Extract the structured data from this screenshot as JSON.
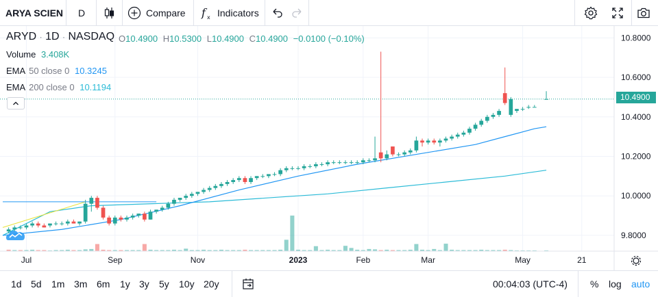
{
  "toolbar": {
    "symbol": "ARYA SCIEN",
    "interval": "D",
    "compare_label": "Compare",
    "indicators_label": "Indicators"
  },
  "legend": {
    "ticker": "ARYD",
    "interval": "1D",
    "exchange": "NASDAQ",
    "o_label": "O",
    "o": "10.4900",
    "h_label": "H",
    "h": "10.5300",
    "l_label": "L",
    "l": "10.4900",
    "c_label": "C",
    "c": "10.4900",
    "change": "−0.0100 (−0.10%)",
    "volume_label": "Volume",
    "volume": "3.408K",
    "ema50_label": "EMA",
    "ema50_params": "50 close 0",
    "ema50_value": "10.3245",
    "ema200_label": "EMA",
    "ema200_params": "200 close 0",
    "ema200_value": "10.1194"
  },
  "price_label": "10.4900",
  "time_ranges": [
    "1d",
    "5d",
    "1m",
    "3m",
    "6m",
    "1y",
    "3y",
    "5y",
    "10y",
    "20y"
  ],
  "bottom": {
    "clock": "00:04:03 (UTC-4)",
    "percent": "%",
    "log": "log",
    "auto": "auto"
  },
  "colors": {
    "up": "#26a69a",
    "down": "#ef5350",
    "ema50": "#2196f3",
    "ema200": "#2bbbd7",
    "trendline": "#e8e33a",
    "auto": "#2196f3"
  },
  "chart_data": {
    "type": "candlestick",
    "y_ticks": [
      "10.8000",
      "10.6000",
      "10.4000",
      "10.2000",
      "10.0000",
      "9.8000"
    ],
    "ylim": [
      9.72,
      10.86
    ],
    "x_ticks": [
      "Jul",
      "Sep",
      "Nov",
      "2023",
      "Feb",
      "Mar",
      "May",
      "21"
    ],
    "xlim": [
      0,
      100
    ],
    "x_tick_positions": [
      4,
      19,
      33,
      50,
      61,
      72,
      88,
      98
    ],
    "candles": [
      {
        "x": 1,
        "o": 9.82,
        "h": 9.84,
        "l": 9.81,
        "c": 9.83
      },
      {
        "x": 2,
        "o": 9.83,
        "h": 9.85,
        "l": 9.82,
        "c": 9.84
      },
      {
        "x": 3,
        "o": 9.84,
        "h": 9.85,
        "l": 9.83,
        "c": 9.84
      },
      {
        "x": 4,
        "o": 9.84,
        "h": 9.86,
        "l": 9.83,
        "c": 9.85
      },
      {
        "x": 5,
        "o": 9.85,
        "h": 9.87,
        "l": 9.84,
        "c": 9.86
      },
      {
        "x": 6,
        "o": 9.86,
        "h": 9.87,
        "l": 9.84,
        "c": 9.85
      },
      {
        "x": 7,
        "o": 9.85,
        "h": 9.86,
        "l": 9.84,
        "c": 9.84
      },
      {
        "x": 8,
        "o": 9.85,
        "h": 9.86,
        "l": 9.84,
        "c": 9.86
      },
      {
        "x": 9,
        "o": 9.86,
        "h": 9.87,
        "l": 9.85,
        "c": 9.86
      },
      {
        "x": 10,
        "o": 9.86,
        "h": 9.87,
        "l": 9.85,
        "c": 9.86
      },
      {
        "x": 11,
        "o": 9.86,
        "h": 9.88,
        "l": 9.85,
        "c": 9.87
      },
      {
        "x": 12,
        "o": 9.87,
        "h": 9.88,
        "l": 9.86,
        "c": 9.86
      },
      {
        "x": 13,
        "o": 9.86,
        "h": 9.87,
        "l": 9.85,
        "c": 9.87
      },
      {
        "x": 14,
        "o": 9.87,
        "h": 9.98,
        "l": 9.86,
        "c": 9.96
      },
      {
        "x": 15,
        "o": 9.96,
        "h": 10.0,
        "l": 9.92,
        "c": 9.99
      },
      {
        "x": 16,
        "o": 9.99,
        "h": 10.0,
        "l": 9.93,
        "c": 9.94
      },
      {
        "x": 17,
        "o": 9.94,
        "h": 9.95,
        "l": 9.88,
        "c": 9.89
      },
      {
        "x": 18,
        "o": 9.89,
        "h": 9.9,
        "l": 9.85,
        "c": 9.86
      },
      {
        "x": 19,
        "o": 9.86,
        "h": 9.9,
        "l": 9.85,
        "c": 9.89
      },
      {
        "x": 20,
        "o": 9.89,
        "h": 9.9,
        "l": 9.87,
        "c": 9.88
      },
      {
        "x": 21,
        "o": 9.88,
        "h": 9.9,
        "l": 9.87,
        "c": 9.89
      },
      {
        "x": 22,
        "o": 9.89,
        "h": 9.91,
        "l": 9.88,
        "c": 9.9
      },
      {
        "x": 23,
        "o": 9.9,
        "h": 9.91,
        "l": 9.89,
        "c": 9.91
      },
      {
        "x": 24,
        "o": 9.91,
        "h": 9.92,
        "l": 9.87,
        "c": 9.88
      },
      {
        "x": 25,
        "o": 9.88,
        "h": 9.93,
        "l": 9.88,
        "c": 9.92
      },
      {
        "x": 26,
        "o": 9.92,
        "h": 9.93,
        "l": 9.91,
        "c": 9.93
      },
      {
        "x": 27,
        "o": 9.93,
        "h": 9.95,
        "l": 9.92,
        "c": 9.94
      },
      {
        "x": 28,
        "o": 9.94,
        "h": 9.97,
        "l": 9.93,
        "c": 9.96
      },
      {
        "x": 29,
        "o": 9.96,
        "h": 9.99,
        "l": 9.95,
        "c": 9.98
      },
      {
        "x": 30,
        "o": 9.98,
        "h": 9.99,
        "l": 9.97,
        "c": 9.99
      },
      {
        "x": 31,
        "o": 9.99,
        "h": 10.01,
        "l": 9.98,
        "c": 10.0
      },
      {
        "x": 32,
        "o": 10.0,
        "h": 10.02,
        "l": 9.99,
        "c": 10.01
      },
      {
        "x": 33,
        "o": 10.01,
        "h": 10.02,
        "l": 10.0,
        "c": 10.02
      },
      {
        "x": 34,
        "o": 10.02,
        "h": 10.04,
        "l": 10.01,
        "c": 10.03
      },
      {
        "x": 35,
        "o": 10.03,
        "h": 10.05,
        "l": 10.02,
        "c": 10.04
      },
      {
        "x": 36,
        "o": 10.04,
        "h": 10.06,
        "l": 10.03,
        "c": 10.05
      },
      {
        "x": 37,
        "o": 10.05,
        "h": 10.07,
        "l": 10.04,
        "c": 10.06
      },
      {
        "x": 38,
        "o": 10.06,
        "h": 10.08,
        "l": 10.05,
        "c": 10.07
      },
      {
        "x": 39,
        "o": 10.07,
        "h": 10.09,
        "l": 10.06,
        "c": 10.08
      },
      {
        "x": 40,
        "o": 10.08,
        "h": 10.1,
        "l": 10.07,
        "c": 10.09
      },
      {
        "x": 41,
        "o": 10.09,
        "h": 10.1,
        "l": 10.06,
        "c": 10.07
      },
      {
        "x": 42,
        "o": 10.07,
        "h": 10.1,
        "l": 10.06,
        "c": 10.09
      },
      {
        "x": 43,
        "o": 10.09,
        "h": 10.1,
        "l": 10.08,
        "c": 10.1
      },
      {
        "x": 44,
        "o": 10.1,
        "h": 10.11,
        "l": 10.09,
        "c": 10.1
      },
      {
        "x": 45,
        "o": 10.1,
        "h": 10.11,
        "l": 10.09,
        "c": 10.11
      },
      {
        "x": 46,
        "o": 10.11,
        "h": 10.12,
        "l": 10.1,
        "c": 10.11
      },
      {
        "x": 47,
        "o": 10.11,
        "h": 10.14,
        "l": 10.1,
        "c": 10.13
      },
      {
        "x": 48,
        "o": 10.13,
        "h": 10.15,
        "l": 10.12,
        "c": 10.14
      },
      {
        "x": 49,
        "o": 10.14,
        "h": 10.15,
        "l": 10.13,
        "c": 10.14
      },
      {
        "x": 50,
        "o": 10.14,
        "h": 10.15,
        "l": 10.13,
        "c": 10.14
      },
      {
        "x": 51,
        "o": 10.14,
        "h": 10.16,
        "l": 10.13,
        "c": 10.15
      },
      {
        "x": 52,
        "o": 10.15,
        "h": 10.16,
        "l": 10.14,
        "c": 10.15
      },
      {
        "x": 53,
        "o": 10.15,
        "h": 10.17,
        "l": 10.14,
        "c": 10.16
      },
      {
        "x": 54,
        "o": 10.16,
        "h": 10.17,
        "l": 10.15,
        "c": 10.16
      },
      {
        "x": 55,
        "o": 10.16,
        "h": 10.18,
        "l": 10.15,
        "c": 10.17
      },
      {
        "x": 56,
        "o": 10.17,
        "h": 10.18,
        "l": 10.16,
        "c": 10.17
      },
      {
        "x": 57,
        "o": 10.17,
        "h": 10.18,
        "l": 10.16,
        "c": 10.17
      },
      {
        "x": 58,
        "o": 10.17,
        "h": 10.18,
        "l": 10.16,
        "c": 10.17
      },
      {
        "x": 59,
        "o": 10.17,
        "h": 10.18,
        "l": 10.16,
        "c": 10.17
      },
      {
        "x": 60,
        "o": 10.17,
        "h": 10.18,
        "l": 10.16,
        "c": 10.17
      },
      {
        "x": 61,
        "o": 10.17,
        "h": 10.19,
        "l": 10.16,
        "c": 10.18
      },
      {
        "x": 62,
        "o": 10.18,
        "h": 10.19,
        "l": 10.17,
        "c": 10.18
      },
      {
        "x": 63,
        "o": 10.18,
        "h": 10.3,
        "l": 10.17,
        "c": 10.19
      },
      {
        "x": 64,
        "o": 10.22,
        "h": 10.73,
        "l": 10.17,
        "c": 10.19
      },
      {
        "x": 65,
        "o": 10.19,
        "h": 10.23,
        "l": 10.18,
        "c": 10.21
      },
      {
        "x": 66,
        "o": 10.25,
        "h": 10.25,
        "l": 10.2,
        "c": 10.21
      },
      {
        "x": 67,
        "o": 10.21,
        "h": 10.22,
        "l": 10.2,
        "c": 10.21
      },
      {
        "x": 68,
        "o": 10.21,
        "h": 10.23,
        "l": 10.2,
        "c": 10.22
      },
      {
        "x": 69,
        "o": 10.22,
        "h": 10.24,
        "l": 10.21,
        "c": 10.23
      },
      {
        "x": 70,
        "o": 10.23,
        "h": 10.3,
        "l": 10.22,
        "c": 10.28
      },
      {
        "x": 71,
        "o": 10.28,
        "h": 10.29,
        "l": 10.25,
        "c": 10.27
      },
      {
        "x": 72,
        "o": 10.27,
        "h": 10.29,
        "l": 10.26,
        "c": 10.28
      },
      {
        "x": 73,
        "o": 10.28,
        "h": 10.29,
        "l": 10.26,
        "c": 10.27
      },
      {
        "x": 74,
        "o": 10.27,
        "h": 10.29,
        "l": 10.25,
        "c": 10.28
      },
      {
        "x": 75,
        "o": 10.28,
        "h": 10.3,
        "l": 10.27,
        "c": 10.29
      },
      {
        "x": 76,
        "o": 10.29,
        "h": 10.31,
        "l": 10.28,
        "c": 10.3
      },
      {
        "x": 77,
        "o": 10.3,
        "h": 10.32,
        "l": 10.29,
        "c": 10.31
      },
      {
        "x": 78,
        "o": 10.31,
        "h": 10.33,
        "l": 10.3,
        "c": 10.32
      },
      {
        "x": 79,
        "o": 10.32,
        "h": 10.35,
        "l": 10.31,
        "c": 10.34
      },
      {
        "x": 80,
        "o": 10.34,
        "h": 10.37,
        "l": 10.33,
        "c": 10.36
      },
      {
        "x": 81,
        "o": 10.36,
        "h": 10.39,
        "l": 10.35,
        "c": 10.38
      },
      {
        "x": 82,
        "o": 10.38,
        "h": 10.41,
        "l": 10.37,
        "c": 10.4
      },
      {
        "x": 83,
        "o": 10.4,
        "h": 10.42,
        "l": 10.39,
        "c": 10.41
      },
      {
        "x": 84,
        "o": 10.41,
        "h": 10.44,
        "l": 10.4,
        "c": 10.43
      },
      {
        "x": 85,
        "o": 10.52,
        "h": 10.65,
        "l": 10.46,
        "c": 10.47
      },
      {
        "x": 86,
        "o": 10.41,
        "h": 10.5,
        "l": 10.4,
        "c": 10.49
      },
      {
        "x": 87,
        "o": 10.43,
        "h": 10.44,
        "l": 10.42,
        "c": 10.44
      },
      {
        "x": 88,
        "o": 10.44,
        "h": 10.45,
        "l": 10.43,
        "c": 10.44
      },
      {
        "x": 89,
        "o": 10.45,
        "h": 10.46,
        "l": 10.44,
        "c": 10.45
      },
      {
        "x": 90,
        "o": 10.45,
        "h": 10.46,
        "l": 10.45,
        "c": 10.45
      },
      {
        "x": 92,
        "o": 10.49,
        "h": 10.53,
        "l": 10.49,
        "c": 10.49
      }
    ],
    "volume": {
      "max": 100,
      "bars": [
        {
          "x": 1,
          "v": 4,
          "d": 1
        },
        {
          "x": 2,
          "v": 3,
          "d": 0
        },
        {
          "x": 3,
          "v": 3,
          "d": 1
        },
        {
          "x": 4,
          "v": 3,
          "d": 0
        },
        {
          "x": 5,
          "v": 4,
          "d": 0
        },
        {
          "x": 6,
          "v": 3,
          "d": 1
        },
        {
          "x": 7,
          "v": 3,
          "d": 1
        },
        {
          "x": 8,
          "v": 2,
          "d": 0
        },
        {
          "x": 9,
          "v": 3,
          "d": 0
        },
        {
          "x": 10,
          "v": 3,
          "d": 0
        },
        {
          "x": 11,
          "v": 4,
          "d": 0
        },
        {
          "x": 12,
          "v": 3,
          "d": 1
        },
        {
          "x": 13,
          "v": 3,
          "d": 0
        },
        {
          "x": 14,
          "v": 5,
          "d": 0
        },
        {
          "x": 15,
          "v": 6,
          "d": 0
        },
        {
          "x": 16,
          "v": 20,
          "d": 1
        },
        {
          "x": 17,
          "v": 4,
          "d": 1
        },
        {
          "x": 18,
          "v": 3,
          "d": 1
        },
        {
          "x": 19,
          "v": 3,
          "d": 0
        },
        {
          "x": 20,
          "v": 3,
          "d": 1
        },
        {
          "x": 21,
          "v": 3,
          "d": 0
        },
        {
          "x": 22,
          "v": 3,
          "d": 0
        },
        {
          "x": 23,
          "v": 3,
          "d": 0
        },
        {
          "x": 24,
          "v": 20,
          "d": 1
        },
        {
          "x": 25,
          "v": 4,
          "d": 0
        },
        {
          "x": 26,
          "v": 3,
          "d": 0
        },
        {
          "x": 27,
          "v": 3,
          "d": 0
        },
        {
          "x": 28,
          "v": 3,
          "d": 0
        },
        {
          "x": 29,
          "v": 4,
          "d": 0
        },
        {
          "x": 30,
          "v": 3,
          "d": 0
        },
        {
          "x": 31,
          "v": 7,
          "d": 0
        },
        {
          "x": 32,
          "v": 3,
          "d": 0
        },
        {
          "x": 33,
          "v": 3,
          "d": 0
        },
        {
          "x": 34,
          "v": 4,
          "d": 0
        },
        {
          "x": 35,
          "v": 3,
          "d": 0
        },
        {
          "x": 36,
          "v": 3,
          "d": 0
        },
        {
          "x": 37,
          "v": 4,
          "d": 0
        },
        {
          "x": 38,
          "v": 3,
          "d": 0
        },
        {
          "x": 39,
          "v": 3,
          "d": 0
        },
        {
          "x": 40,
          "v": 3,
          "d": 0
        },
        {
          "x": 41,
          "v": 4,
          "d": 1
        },
        {
          "x": 42,
          "v": 3,
          "d": 0
        },
        {
          "x": 43,
          "v": 3,
          "d": 0
        },
        {
          "x": 44,
          "v": 3,
          "d": 0
        },
        {
          "x": 45,
          "v": 3,
          "d": 0
        },
        {
          "x": 46,
          "v": 3,
          "d": 0
        },
        {
          "x": 47,
          "v": 4,
          "d": 0
        },
        {
          "x": 48,
          "v": 32,
          "d": 0
        },
        {
          "x": 49,
          "v": 100,
          "d": 0
        },
        {
          "x": 50,
          "v": 4,
          "d": 0
        },
        {
          "x": 51,
          "v": 3,
          "d": 0
        },
        {
          "x": 52,
          "v": 3,
          "d": 0
        },
        {
          "x": 53,
          "v": 14,
          "d": 0
        },
        {
          "x": 54,
          "v": 3,
          "d": 0
        },
        {
          "x": 55,
          "v": 4,
          "d": 0
        },
        {
          "x": 56,
          "v": 3,
          "d": 0
        },
        {
          "x": 57,
          "v": 3,
          "d": 0
        },
        {
          "x": 58,
          "v": 15,
          "d": 0
        },
        {
          "x": 59,
          "v": 9,
          "d": 0
        },
        {
          "x": 60,
          "v": 4,
          "d": 0
        },
        {
          "x": 61,
          "v": 3,
          "d": 0
        },
        {
          "x": 62,
          "v": 6,
          "d": 0
        },
        {
          "x": 63,
          "v": 5,
          "d": 0
        },
        {
          "x": 64,
          "v": 3,
          "d": 1
        },
        {
          "x": 65,
          "v": 4,
          "d": 0
        },
        {
          "x": 66,
          "v": 3,
          "d": 1
        },
        {
          "x": 67,
          "v": 3,
          "d": 0
        },
        {
          "x": 68,
          "v": 3,
          "d": 0
        },
        {
          "x": 69,
          "v": 4,
          "d": 0
        },
        {
          "x": 70,
          "v": 20,
          "d": 0
        },
        {
          "x": 71,
          "v": 4,
          "d": 0
        },
        {
          "x": 72,
          "v": 3,
          "d": 0
        },
        {
          "x": 73,
          "v": 6,
          "d": 0
        },
        {
          "x": 74,
          "v": 3,
          "d": 0
        },
        {
          "x": 75,
          "v": 21,
          "d": 0
        },
        {
          "x": 76,
          "v": 4,
          "d": 0
        },
        {
          "x": 77,
          "v": 3,
          "d": 0
        },
        {
          "x": 78,
          "v": 3,
          "d": 0
        },
        {
          "x": 79,
          "v": 3,
          "d": 0
        },
        {
          "x": 80,
          "v": 3,
          "d": 0
        },
        {
          "x": 81,
          "v": 4,
          "d": 0
        },
        {
          "x": 82,
          "v": 3,
          "d": 0
        },
        {
          "x": 83,
          "v": 3,
          "d": 0
        },
        {
          "x": 84,
          "v": 3,
          "d": 0
        },
        {
          "x": 85,
          "v": 4,
          "d": 1
        },
        {
          "x": 86,
          "v": 3,
          "d": 0
        },
        {
          "x": 87,
          "v": 2,
          "d": 0
        },
        {
          "x": 88,
          "v": 2,
          "d": 0
        },
        {
          "x": 89,
          "v": 2,
          "d": 0
        },
        {
          "x": 90,
          "v": 2,
          "d": 0
        },
        {
          "x": 92,
          "v": 2,
          "d": 0
        }
      ]
    },
    "ema50": [
      [
        0,
        9.8
      ],
      [
        10,
        9.83
      ],
      [
        20,
        9.88
      ],
      [
        30,
        9.95
      ],
      [
        40,
        10.03
      ],
      [
        50,
        10.1
      ],
      [
        60,
        10.16
      ],
      [
        70,
        10.21
      ],
      [
        80,
        10.26
      ],
      [
        85,
        10.3
      ],
      [
        90,
        10.34
      ],
      [
        92,
        10.35
      ]
    ],
    "ema200": [
      [
        0,
        9.8
      ],
      [
        8,
        9.92
      ],
      [
        15,
        9.95
      ],
      [
        25,
        9.96
      ],
      [
        35,
        9.97
      ],
      [
        45,
        9.99
      ],
      [
        55,
        10.01
      ],
      [
        65,
        10.04
      ],
      [
        75,
        10.07
      ],
      [
        85,
        10.1
      ],
      [
        92,
        10.13
      ]
    ],
    "trend_up": [
      [
        0,
        9.84
      ],
      [
        14,
        9.97
      ]
    ],
    "trend_horizontal": [
      [
        0,
        9.97
      ],
      [
        26,
        9.97
      ]
    ],
    "last_price": 10.49
  }
}
